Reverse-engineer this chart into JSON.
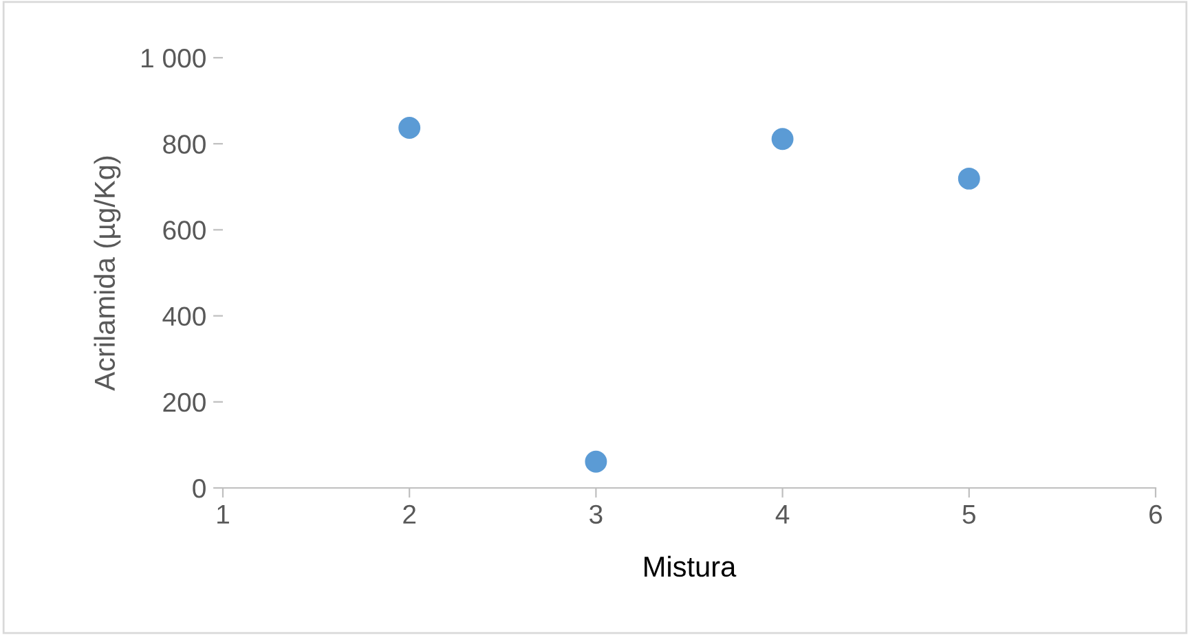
{
  "chart_data": {
    "type": "scatter",
    "xlabel": "Mistura",
    "ylabel": "Acrilamida (µg/Kg)",
    "x": [
      2,
      3,
      4,
      5
    ],
    "series": [
      {
        "color": "#5b9bd5",
        "values": [
          837,
          61,
          811,
          719
        ]
      }
    ],
    "xlim": [
      1,
      6
    ],
    "xticks": [
      1,
      2,
      3,
      4,
      5,
      6
    ],
    "ylim": [
      0,
      1000
    ],
    "yticks": [
      0,
      200,
      400,
      600,
      800,
      {
        "value": 1000,
        "label": "1 000"
      }
    ],
    "grid": false,
    "marker": "circle"
  }
}
